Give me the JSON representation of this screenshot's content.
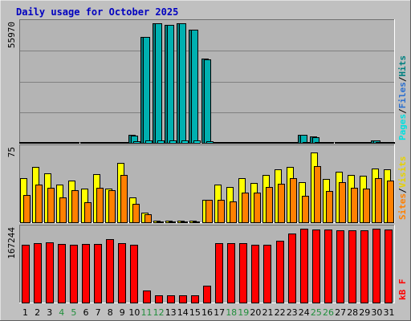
{
  "chart_data": {
    "type": "bar",
    "title": "Daily usage for October 2025",
    "categories": [
      "1",
      "2",
      "3",
      "4",
      "5",
      "6",
      "7",
      "8",
      "9",
      "10",
      "11",
      "12",
      "13",
      "14",
      "15",
      "16",
      "17",
      "18",
      "19",
      "20",
      "21",
      "22",
      "23",
      "24",
      "25",
      "26",
      "27",
      "28",
      "29",
      "30",
      "31"
    ],
    "weekend_days": [
      "4",
      "5",
      "11",
      "12",
      "18",
      "19",
      "25",
      "26"
    ],
    "colors": {
      "background": "#c0c0c0",
      "plot": "#b4b4b4",
      "title": "#0000c0",
      "day_normal": "#000000",
      "day_weekend": "#218f3c",
      "pages": "#00e0e0",
      "files": "#00b0b0",
      "hits": "#008080",
      "visits": "#ffff00",
      "sites": "#ff8000",
      "kbytes": "#ff0000"
    },
    "panels": [
      {
        "scale_max_label": "55970",
        "ymax": 55970,
        "legend": [
          "Pages",
          "/",
          "Files",
          "/",
          "Hits"
        ],
        "series": [
          {
            "name": "Hits",
            "values": [
              520,
              530,
              530,
              500,
              520,
              520,
              510,
              530,
              520,
              3600,
              49500,
              55970,
              55200,
              55900,
              53100,
              39300,
              520,
              520,
              510,
              510,
              520,
              510,
              520,
              3900,
              2900,
              520,
              520,
              530,
              520,
              1100,
              520
            ]
          },
          {
            "name": "Files",
            "values": [
              460,
              470,
              470,
              450,
              460,
              460,
              450,
              470,
              460,
              3400,
              49400,
              55900,
              55100,
              55800,
              53000,
              39200,
              460,
              460,
              450,
              450,
              460,
              450,
              460,
              3700,
              2800,
              460,
              460,
              470,
              460,
              950,
              460
            ]
          },
          {
            "name": "Pages",
            "values": [
              310,
              320,
              320,
              300,
              310,
              310,
              300,
              320,
              310,
              600,
              1000,
              1100,
              1000,
              1100,
              1000,
              900,
              310,
              310,
              300,
              300,
              310,
              300,
              310,
              400,
              300,
              310,
              310,
              320,
              310,
              350,
              310
            ]
          }
        ]
      },
      {
        "scale_max_label": "75",
        "ymax": 75,
        "legend": [
          "Sites",
          "/",
          "Visits"
        ],
        "series": [
          {
            "name": "Visits",
            "values": [
              45,
              56,
              50,
              38,
              42,
              34,
              49,
              34,
              60,
              25,
              10,
              2,
              2,
              2,
              2,
              23,
              38,
              36,
              45,
              40,
              48,
              54,
              56,
              41,
              71,
              44,
              51,
              48,
              47,
              55,
              54
            ]
          },
          {
            "name": "Sites",
            "values": [
              28,
              38,
              35,
              25,
              33,
              20,
              35,
              33,
              48,
              19,
              8,
              1,
              1,
              1,
              1,
              23,
              23,
              21,
              30,
              30,
              36,
              39,
              45,
              27,
              57,
              32,
              41,
              35,
              34,
              45,
              42
            ]
          }
        ]
      },
      {
        "scale_max_label": "167244",
        "ymax": 167244,
        "legend": [
          "KBytes"
        ],
        "legend_text": "kB F",
        "series": [
          {
            "name": "KBytes",
            "values": [
              131000,
              134000,
              137000,
              133000,
              131000,
              133000,
              133000,
              143000,
              135000,
              131000,
              27000,
              17000,
              17000,
              17000,
              17000,
              39000,
              134000,
              135000,
              135000,
              131000,
              131000,
              140000,
              157000,
              167244,
              166000,
              165000,
              164000,
              164000,
              164000,
              167000,
              166000
            ]
          }
        ]
      }
    ]
  }
}
